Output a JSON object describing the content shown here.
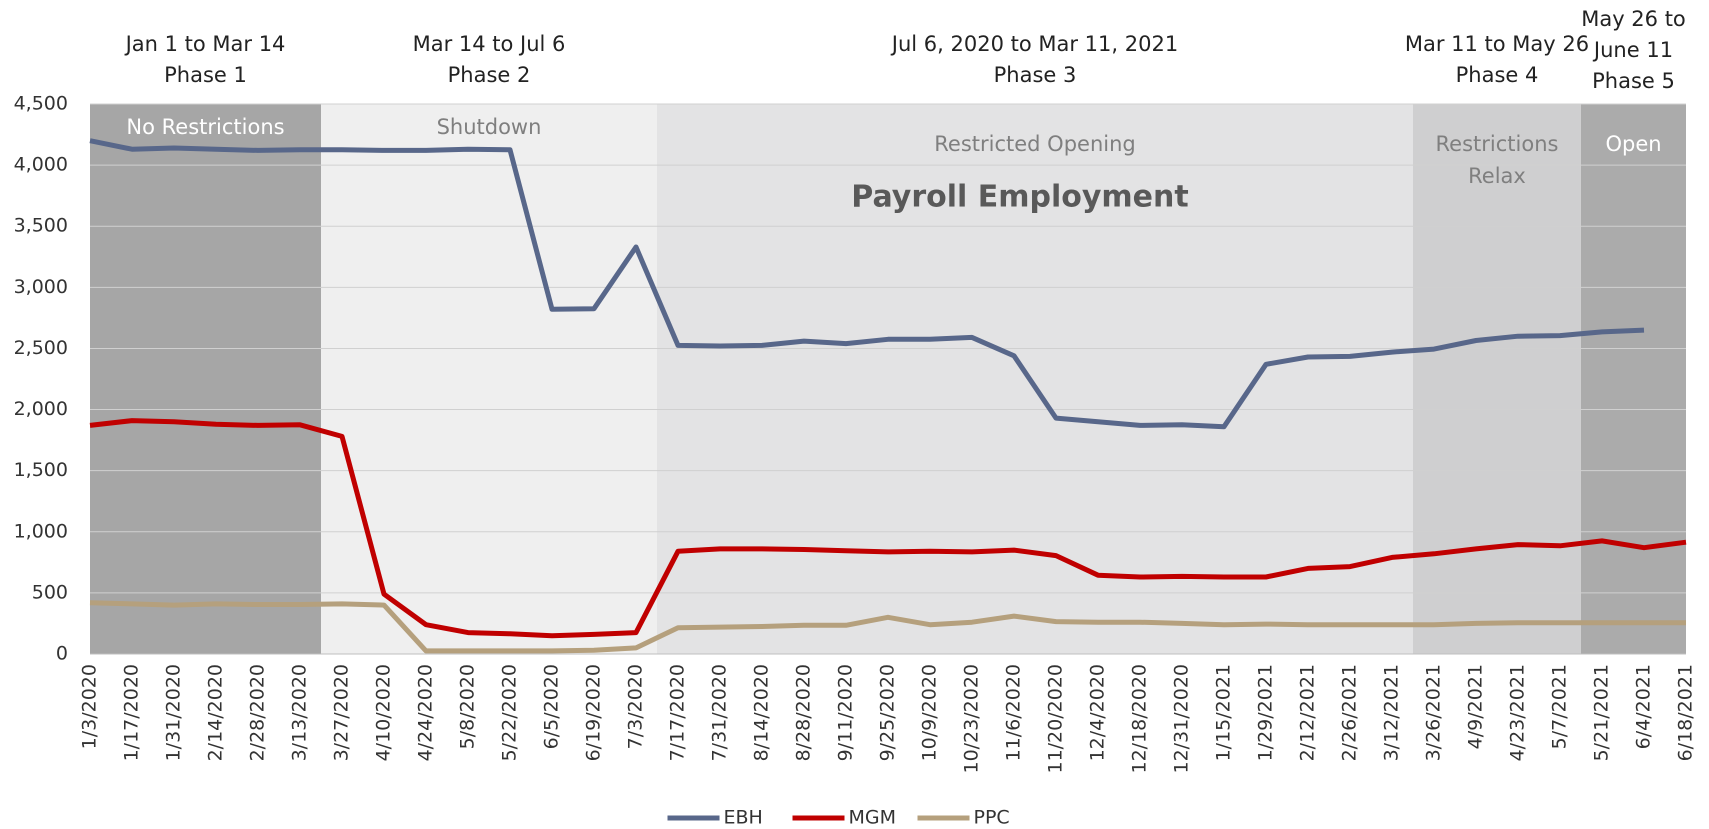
{
  "chart_data": {
    "type": "line",
    "title": "Payroll Employment",
    "categories": [
      "1/3/2020",
      "1/17/2020",
      "1/31/2020",
      "2/14/2020",
      "2/28/2020",
      "3/13/2020",
      "3/27/2020",
      "4/10/2020",
      "4/24/2020",
      "5/8/2020",
      "5/22/2020",
      "6/5/2020",
      "6/19/2020",
      "7/3/2020",
      "7/17/2020",
      "7/31/2020",
      "8/14/2020",
      "8/28/2020",
      "9/11/2020",
      "9/25/2020",
      "10/9/2020",
      "10/23/2020",
      "11/6/2020",
      "11/20/2020",
      "12/4/2020",
      "12/18/2020",
      "12/31/2020",
      "1/15/2021",
      "1/29/2021",
      "2/12/2021",
      "2/26/2021",
      "3/12/2021",
      "3/26/2021",
      "4/9/2021",
      "4/23/2021",
      "5/7/2021",
      "5/21/2021",
      "6/4/2021",
      "6/18/2021"
    ],
    "series": [
      {
        "name": "EBH",
        "color": "#58678a",
        "values": [
          4200,
          4130,
          4140,
          4130,
          4120,
          4125,
          4125,
          4120,
          4120,
          4130,
          4125,
          2820,
          2825,
          3330,
          2525,
          2520,
          2525,
          2560,
          2540,
          2575,
          2575,
          2590,
          2440,
          1930,
          1900,
          1870,
          1875,
          1860,
          2370,
          2430,
          2435,
          2470,
          2495,
          2565,
          2600,
          2605,
          2635,
          2650,
          null
        ]
      },
      {
        "name": "MGM",
        "color": "#c00000",
        "values": [
          1870,
          1910,
          1900,
          1880,
          1870,
          1875,
          1780,
          490,
          240,
          175,
          165,
          150,
          160,
          175,
          840,
          860,
          860,
          855,
          845,
          835,
          840,
          835,
          850,
          805,
          645,
          630,
          635,
          630,
          630,
          700,
          715,
          790,
          820,
          860,
          895,
          885,
          925,
          870,
          915
        ]
      },
      {
        "name": "PPC",
        "color": "#b5a07d",
        "values": [
          420,
          410,
          400,
          410,
          405,
          405,
          410,
          400,
          25,
          25,
          25,
          25,
          30,
          50,
          215,
          220,
          225,
          235,
          235,
          300,
          240,
          260,
          310,
          265,
          260,
          260,
          250,
          240,
          245,
          240,
          240,
          240,
          240,
          250,
          255,
          255,
          255,
          255,
          255
        ]
      }
    ],
    "ylim": [
      0,
      4500
    ],
    "yticks": [
      0,
      500,
      {
        "value": 1000,
        "label": "1,000"
      },
      {
        "value": 1500,
        "label": "1,500"
      },
      {
        "value": 2000,
        "label": "2,000"
      },
      {
        "value": 2500,
        "label": "2,500"
      },
      {
        "value": 3000,
        "label": "3,000"
      },
      {
        "value": 3500,
        "label": "3,500"
      },
      {
        "value": 4000,
        "label": "4,000"
      },
      {
        "value": 4500,
        "label": "4,500"
      }
    ],
    "grid": true,
    "legend": "bottom",
    "phases": [
      {
        "header": [
          "Jan 1 to Mar 14",
          "Phase 1"
        ],
        "label": [
          "No Restrictions"
        ],
        "color": "#a6a6a6",
        "label_color": "#ffffff"
      },
      {
        "header": [
          "Mar 14 to Jul 6",
          "Phase 2"
        ],
        "label": [
          "Shutdown"
        ],
        "color": "#efefef",
        "label_color": "#7f7f7f"
      },
      {
        "header": [
          "Jul 6, 2020 to Mar 11, 2021",
          "Phase 3"
        ],
        "label": [
          "Restricted Opening"
        ],
        "color": "#e3e3e4",
        "label_color": "#7f7f7f"
      },
      {
        "header": [
          "Mar 11 to May 26",
          "Phase 4"
        ],
        "label": [
          "Restrictions",
          "Relax"
        ],
        "color": "#cfcfd0",
        "label_color": "#7f7f7f"
      },
      {
        "header": [
          "May 26 to",
          "June 11",
          "Phase 5"
        ],
        "label": [
          "Open"
        ],
        "color": "#ababab",
        "label_color": "#ffffff"
      }
    ]
  }
}
